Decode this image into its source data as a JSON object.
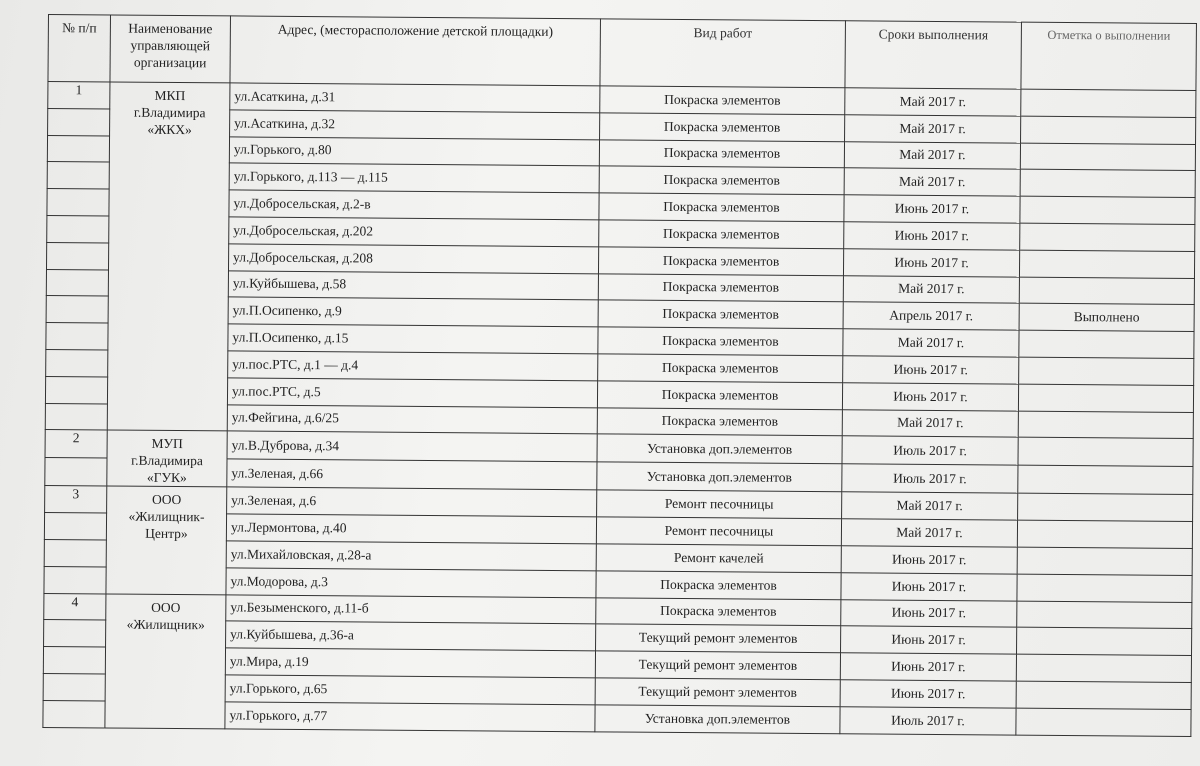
{
  "headers": [
    "№ п/п",
    "Наименование управляющей организации",
    "Адрес, (месторасположение детской площадки)",
    "Вид работ",
    "Сроки выполнения",
    "Отметка о выполнении"
  ],
  "groups": [
    {
      "num": "1",
      "org": [
        "МКП",
        "г.Владимира",
        "«ЖКХ»"
      ],
      "rows": [
        {
          "address": "ул.Асаткина, д.31",
          "work": "Покраска элементов",
          "date": "Май 2017 г.",
          "mark": ""
        },
        {
          "address": "ул.Асаткина, д.32",
          "work": "Покраска элементов",
          "date": "Май 2017 г.",
          "mark": ""
        },
        {
          "address": "ул.Горького, д.80",
          "work": "Покраска элементов",
          "date": "Май 2017 г.",
          "mark": ""
        },
        {
          "address": "ул.Горького, д.113 — д.115",
          "work": "Покраска элементов",
          "date": "Май 2017 г.",
          "mark": ""
        },
        {
          "address": "ул.Добросельская, д.2-в",
          "work": "Покраска элементов",
          "date": "Июнь 2017 г.",
          "mark": ""
        },
        {
          "address": "ул.Добросельская, д.202",
          "work": "Покраска элементов",
          "date": "Июнь 2017 г.",
          "mark": ""
        },
        {
          "address": "ул.Добросельская, д.208",
          "work": "Покраска элементов",
          "date": "Июнь 2017 г.",
          "mark": ""
        },
        {
          "address": "ул.Куйбышева, д.58",
          "work": "Покраска элементов",
          "date": "Май 2017 г.",
          "mark": ""
        },
        {
          "address": "ул.П.Осипенко, д.9",
          "work": "Покраска элементов",
          "date": "Апрель 2017 г.",
          "mark": "Выполнено"
        },
        {
          "address": "ул.П.Осипенко, д.15",
          "work": "Покраска элементов",
          "date": "Май  2017 г.",
          "mark": ""
        },
        {
          "address": "ул.пос.РТС, д.1 — д.4",
          "work": "Покраска элементов",
          "date": "Июнь  2017 г.",
          "mark": ""
        },
        {
          "address": "ул.пос.РТС, д.5",
          "work": "Покраска элементов",
          "date": "Июнь 2017 г.",
          "mark": ""
        },
        {
          "address": "ул.Фейгина, д.6/25",
          "work": "Покраска элементов",
          "date": "Май  2017 г.",
          "mark": ""
        }
      ]
    },
    {
      "num": "2",
      "org": [
        "МУП",
        "г.Владимира",
        "«ГУК»"
      ],
      "rows": [
        {
          "address": "ул.В.Дуброва, д.34",
          "work": "Установка доп.элементов",
          "date": "Июль 2017 г.",
          "mark": ""
        },
        {
          "address": "ул.Зеленая, д.66",
          "work": "Установка доп.элементов",
          "date": "Июль 2017 г.",
          "mark": ""
        }
      ]
    },
    {
      "num": "3",
      "org": [
        "ООО",
        "«Жилищник-",
        "Центр»"
      ],
      "rows": [
        {
          "address": "ул.Зеленая, д.6",
          "work": "Ремонт песочницы",
          "date": "Май 2017 г.",
          "mark": ""
        },
        {
          "address": "ул.Лермонтова, д.40",
          "work": "Ремонт песочницы",
          "date": "Май 2017 г.",
          "mark": ""
        },
        {
          "address": "ул.Михайловская, д.28-а",
          "work": "Ремонт качелей",
          "date": "Июнь 2017 г.",
          "mark": ""
        },
        {
          "address": "ул.Модорова, д.3",
          "work": "Покраска элементов",
          "date": "Июнь 2017 г.",
          "mark": ""
        }
      ]
    },
    {
      "num": "4",
      "org": [
        "ООО",
        "«Жилищник»"
      ],
      "rows": [
        {
          "address": "ул.Безыменского, д.11-б",
          "work": "Покраска элементов",
          "date": "Июнь 2017 г.",
          "mark": ""
        },
        {
          "address": "ул.Куйбышева, д.36-а",
          "work": "Текущий ремонт элементов",
          "date": "Июнь 2017 г.",
          "mark": ""
        },
        {
          "address": "ул.Мира, д.19",
          "work": "Текущий ремонт элементов",
          "date": "Июнь 2017 г.",
          "mark": ""
        },
        {
          "address": "ул.Горького, д.65",
          "work": "Текущий ремонт элементов",
          "date": "Июнь 2017 г.",
          "mark": ""
        },
        {
          "address": "ул.Горького, д.77",
          "work": "Установка доп.элементов",
          "date": "Июль 2017 г.",
          "mark": ""
        }
      ]
    }
  ]
}
